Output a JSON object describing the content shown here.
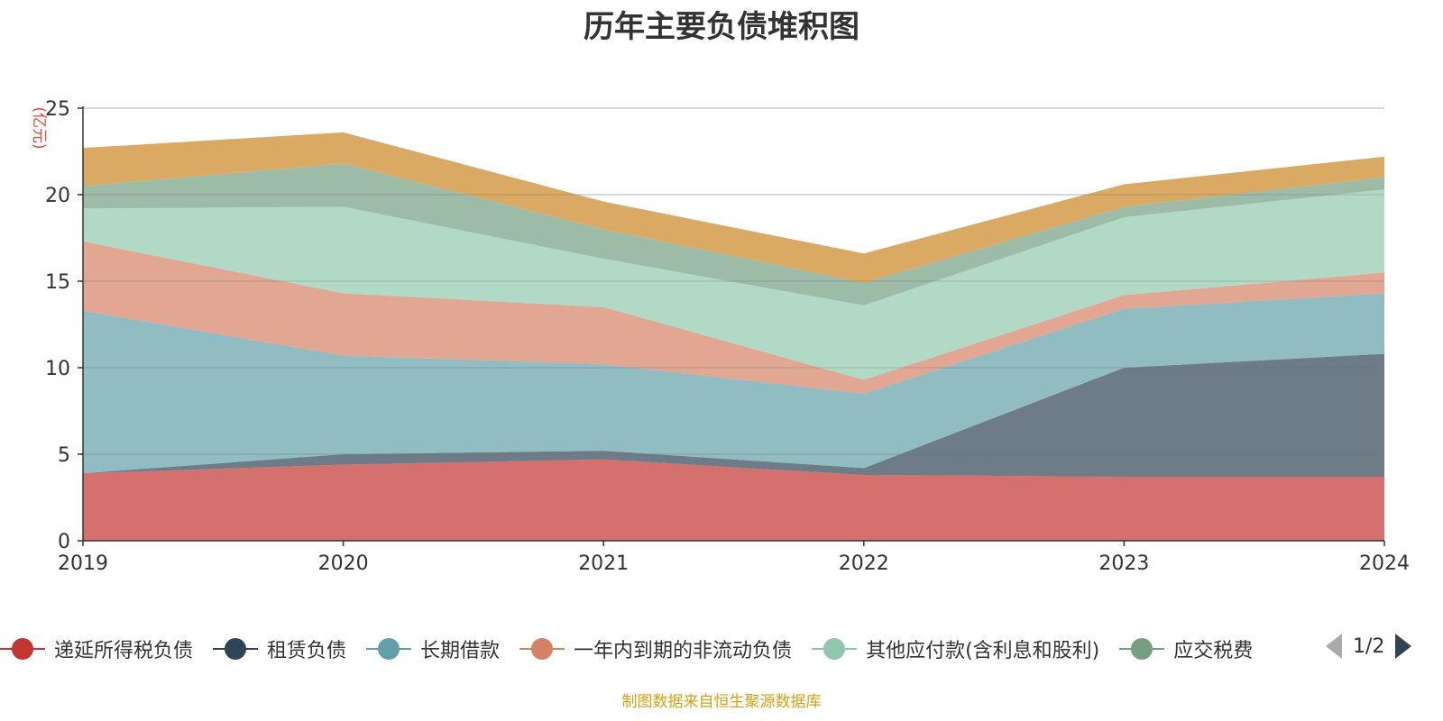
{
  "chart_data": {
    "type": "area",
    "stacked": true,
    "title": "历年主要负债堆积图",
    "unit_label": "(亿元)",
    "x": [
      "2019",
      "2020",
      "2021",
      "2022",
      "2023",
      "2024"
    ],
    "ylim": [
      0,
      25
    ],
    "yticks": [
      0,
      5,
      10,
      15,
      20,
      25
    ],
    "grid": true,
    "legend_position": "bottom",
    "series": [
      {
        "name": "递延所得税负债",
        "color": "#c23531",
        "values": [
          3.9,
          4.4,
          4.7,
          3.8,
          3.7,
          3.7
        ]
      },
      {
        "name": "租赁负债",
        "color": "#2f4554",
        "values": [
          0.0,
          0.6,
          0.5,
          0.4,
          6.3,
          7.1
        ]
      },
      {
        "name": "长期借款",
        "color": "#61a0a8",
        "values": [
          9.4,
          5.7,
          5.0,
          4.3,
          3.4,
          3.5
        ]
      },
      {
        "name": "一年内到期的非流动负债",
        "color": "#d48265",
        "values": [
          4.0,
          3.6,
          3.3,
          0.8,
          0.8,
          1.2
        ]
      },
      {
        "name": "其他应付款(含利息和股利)",
        "color": "#91c7ae",
        "values": [
          1.9,
          5.0,
          2.8,
          4.3,
          4.5,
          4.8
        ]
      },
      {
        "name": "应交税费",
        "color": "#749f83",
        "values": [
          1.3,
          2.5,
          1.7,
          1.3,
          0.6,
          0.7
        ]
      },
      {
        "name": "",
        "color": "#ca8622",
        "values": [
          2.2,
          1.8,
          1.6,
          1.7,
          1.3,
          1.2
        ]
      }
    ]
  },
  "legend": {
    "page_indicator": "1/2"
  },
  "source_note": "制图数据来自恒生聚源数据库"
}
